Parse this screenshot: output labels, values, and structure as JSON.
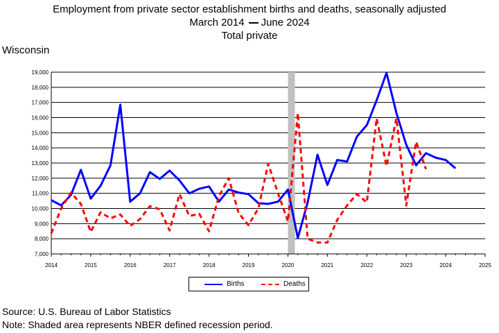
{
  "header": {
    "title_line1": "Employment from private sector establishment births and deaths, seasonally adjusted",
    "title_line2_start": "March 2014",
    "title_line2_end": "June 2024",
    "title_line3": "Total private"
  },
  "region": "Wisconsin",
  "footer": {
    "source": "Source: U.S. Bureau of Labor Statistics",
    "note": "Note: Shaded area represents NBER defined recession period."
  },
  "chart_data": {
    "type": "line",
    "title": "Employment from private sector establishment births and deaths, seasonally adjusted",
    "ylim": [
      7000,
      19000
    ],
    "xlim": [
      2014,
      2025
    ],
    "y_ticks": [
      "7,000",
      "8,000",
      "9,000",
      "10,000",
      "11,000",
      "12,000",
      "13,000",
      "14,000",
      "15,000",
      "16,000",
      "17,000",
      "18,000",
      "19,000"
    ],
    "x_ticks": [
      "2014",
      "2015",
      "2016",
      "2017",
      "2018",
      "2019",
      "2020",
      "2021",
      "2022",
      "2023",
      "2024",
      "2025"
    ],
    "grid": "horizontal",
    "recession": {
      "start": 2020.0,
      "end": 2020.17,
      "color": "#c0c0c0"
    },
    "series": [
      {
        "name": "Births",
        "color": "#0000ff",
        "style": "solid",
        "x": [
          2014.0,
          2014.25,
          2014.5,
          2014.75,
          2015.0,
          2015.25,
          2015.5,
          2015.75,
          2016.0,
          2016.25,
          2016.5,
          2016.75,
          2017.0,
          2017.25,
          2017.5,
          2017.75,
          2018.0,
          2018.25,
          2018.5,
          2018.75,
          2019.0,
          2019.25,
          2019.5,
          2019.75,
          2020.0,
          2020.25,
          2020.5,
          2020.75,
          2021.0,
          2021.25,
          2021.5,
          2021.75,
          2022.0,
          2022.25,
          2022.5,
          2022.75,
          2023.0,
          2023.25,
          2023.5,
          2023.75,
          2024.0,
          2024.25
        ],
        "values": [
          10550,
          10200,
          10900,
          12550,
          10650,
          11500,
          12850,
          16850,
          10450,
          11000,
          12400,
          11950,
          12500,
          11850,
          11000,
          11300,
          11450,
          10450,
          11250,
          11050,
          10950,
          10350,
          10300,
          10450,
          11250,
          8050,
          10400,
          13550,
          11550,
          13200,
          13100,
          14750,
          15500,
          17150,
          18950,
          16300,
          14200,
          12850,
          13650,
          13350,
          13200,
          12650
        ]
      },
      {
        "name": "Deaths",
        "color": "#ff0000",
        "style": "dashed",
        "x": [
          2014.0,
          2014.25,
          2014.5,
          2014.75,
          2015.0,
          2015.25,
          2015.5,
          2015.75,
          2016.0,
          2016.25,
          2016.5,
          2016.75,
          2017.0,
          2017.25,
          2017.5,
          2017.75,
          2018.0,
          2018.25,
          2018.5,
          2018.75,
          2019.0,
          2019.25,
          2019.5,
          2019.75,
          2020.0,
          2020.25,
          2020.5,
          2020.75,
          2021.0,
          2021.25,
          2021.5,
          2021.75,
          2022.0,
          2022.25,
          2022.5,
          2022.75,
          2023.0,
          2023.25,
          2023.5
        ],
        "values": [
          8350,
          10000,
          11050,
          10300,
          8450,
          9750,
          9350,
          9600,
          8850,
          9300,
          10150,
          9950,
          8550,
          10950,
          9500,
          9650,
          8500,
          10800,
          12000,
          9700,
          8900,
          10000,
          12950,
          11000,
          9150,
          16300,
          8000,
          7750,
          7750,
          9250,
          10200,
          10950,
          10400,
          15950,
          12800,
          15950,
          10200,
          14400,
          12600
        ]
      }
    ],
    "legend": {
      "position": "bottom-center"
    }
  }
}
